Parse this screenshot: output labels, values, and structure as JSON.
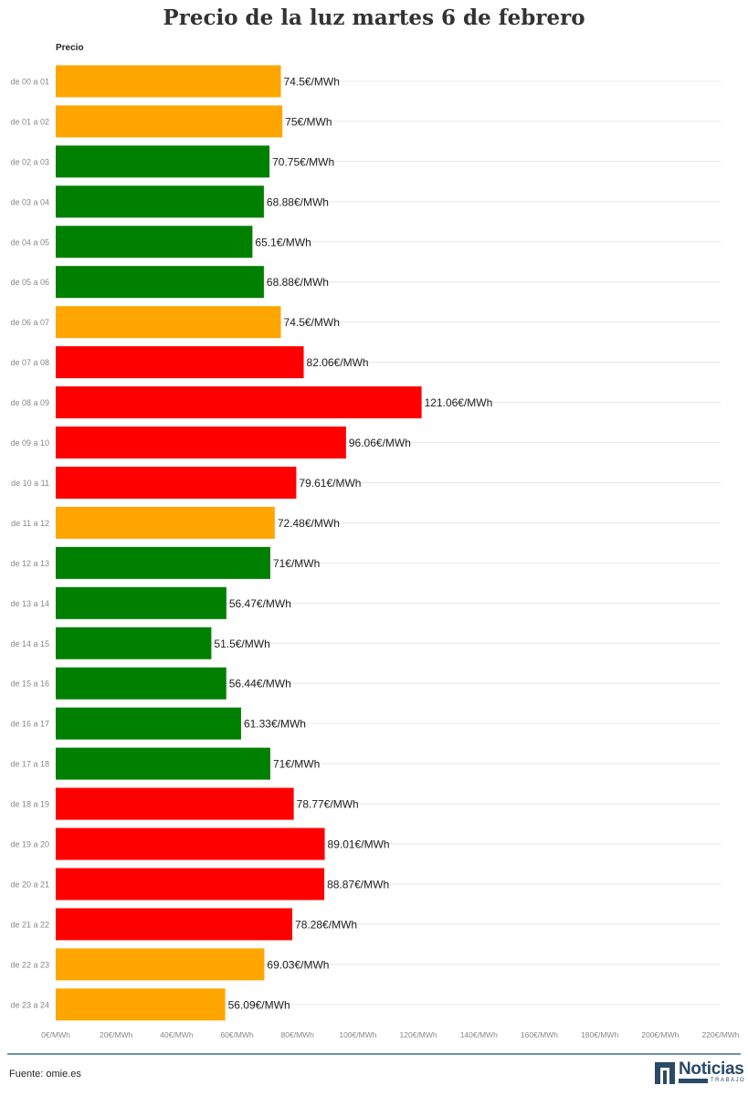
{
  "title": "Precio de la luz martes 6 de febrero",
  "column_header": "Precio",
  "source": "Fuente: omie.es",
  "logo": {
    "word": "Noticias",
    "sub": "TRABAJO"
  },
  "colors": {
    "high": "#ff0000",
    "medium": "#ffa500",
    "low": "#008000",
    "grid": "#e6e6e6",
    "footer_line": "#6f8fb0"
  },
  "chart_data": {
    "type": "bar",
    "orientation": "horizontal",
    "categories": [
      "de 00 a 01",
      "de 01 a 02",
      "de 02 a 03",
      "de 03 a 04",
      "de 04 a 05",
      "de 05 a 06",
      "de 06 a 07",
      "de 07 a 08",
      "de 08 a 09",
      "de 09 a 10",
      "de 10 a 11",
      "de 11 a 12",
      "de 12 a 13",
      "de 13 a 14",
      "de 14 a 15",
      "de 15 a 16",
      "de 16 a 17",
      "de 17 a 18",
      "de 18 a 19",
      "de 19 a 20",
      "de 20 a 21",
      "de 21 a 22",
      "de 22 a 23",
      "de 23 a 24"
    ],
    "values": [
      74.5,
      75,
      70.75,
      68.88,
      65.1,
      68.88,
      74.5,
      82.06,
      121.06,
      96.06,
      79.61,
      72.48,
      71,
      56.47,
      51.5,
      56.44,
      61.33,
      71,
      78.77,
      89.01,
      88.87,
      78.28,
      69.03,
      56.09
    ],
    "labels": [
      "74.5€/MWh",
      "75€/MWh",
      "70.75€/MWh",
      "68.88€/MWh",
      "65.1€/MWh",
      "68.88€/MWh",
      "74.5€/MWh",
      "82.06€/MWh",
      "121.06€/MWh",
      "96.06€/MWh",
      "79.61€/MWh",
      "72.48€/MWh",
      "71€/MWh",
      "56.47€/MWh",
      "51.5€/MWh",
      "56.44€/MWh",
      "61.33€/MWh",
      "71€/MWh",
      "78.77€/MWh",
      "89.01€/MWh",
      "88.87€/MWh",
      "78.28€/MWh",
      "69.03€/MWh",
      "56.09€/MWh"
    ],
    "levels": [
      "medium",
      "medium",
      "low",
      "low",
      "low",
      "low",
      "medium",
      "high",
      "high",
      "high",
      "high",
      "medium",
      "low",
      "low",
      "low",
      "low",
      "low",
      "low",
      "high",
      "high",
      "high",
      "high",
      "medium",
      "medium"
    ],
    "xlim": [
      0,
      220
    ],
    "xticks": [
      0,
      20,
      40,
      60,
      80,
      100,
      120,
      140,
      160,
      180,
      200,
      220
    ],
    "xtick_labels": [
      "0€/MWh",
      "20€/MWh",
      "40€/MWh",
      "60€/MWh",
      "80€/MWh",
      "100€/MWh",
      "120€/MWh",
      "140€/MWh",
      "160€/MWh",
      "180€/MWh",
      "200€/MWh",
      "220€/MWh"
    ],
    "grid": true
  }
}
